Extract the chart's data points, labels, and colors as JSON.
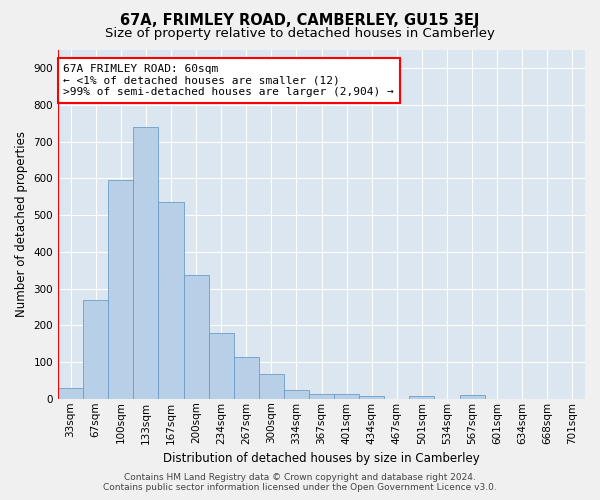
{
  "title": "67A, FRIMLEY ROAD, CAMBERLEY, GU15 3EJ",
  "subtitle": "Size of property relative to detached houses in Camberley",
  "xlabel": "Distribution of detached houses by size in Camberley",
  "ylabel": "Number of detached properties",
  "bar_color": "#b8cfe8",
  "bar_edge_color": "#6b9ec8",
  "background_color": "#dce6f0",
  "fig_background": "#f0f0f0",
  "categories": [
    "33sqm",
    "67sqm",
    "100sqm",
    "133sqm",
    "167sqm",
    "200sqm",
    "234sqm",
    "267sqm",
    "300sqm",
    "334sqm",
    "367sqm",
    "401sqm",
    "434sqm",
    "467sqm",
    "501sqm",
    "534sqm",
    "567sqm",
    "601sqm",
    "634sqm",
    "668sqm",
    "701sqm"
  ],
  "values": [
    28,
    270,
    595,
    740,
    535,
    338,
    180,
    115,
    67,
    25,
    14,
    14,
    7,
    0,
    7,
    0,
    9,
    0,
    0,
    0,
    0
  ],
  "ylim": [
    0,
    950
  ],
  "yticks": [
    0,
    100,
    200,
    300,
    400,
    500,
    600,
    700,
    800,
    900
  ],
  "annotation_text_line1": "67A FRIMLEY ROAD: 60sqm",
  "annotation_text_line2": "← <1% of detached houses are smaller (12)",
  "annotation_text_line3": ">99% of semi-detached houses are larger (2,904) →",
  "footer_line1": "Contains HM Land Registry data © Crown copyright and database right 2024.",
  "footer_line2": "Contains public sector information licensed under the Open Government Licence v3.0.",
  "grid_color": "#ffffff",
  "title_fontsize": 10.5,
  "subtitle_fontsize": 9.5,
  "annotation_fontsize": 8,
  "axis_label_fontsize": 8.5,
  "tick_fontsize": 7.5,
  "footer_fontsize": 6.5
}
